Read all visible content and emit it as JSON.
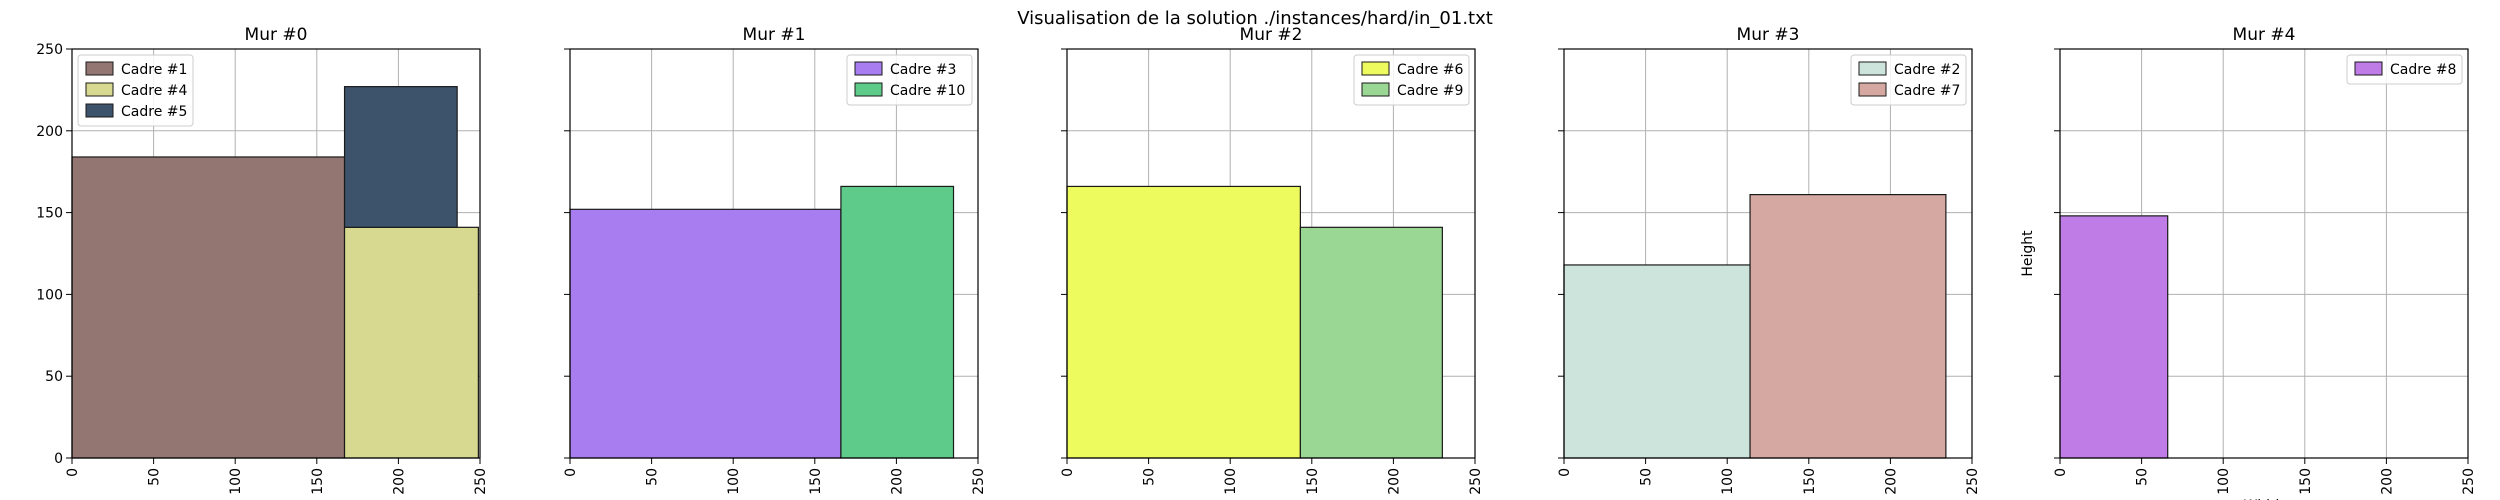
{
  "figure": {
    "title": "Visualisation de la solution ./instances/hard/in_01.txt"
  },
  "chart_data": [
    {
      "type": "bar",
      "title": "Mur #0",
      "xlabel": "",
      "ylabel": "",
      "xlim": [
        0,
        250
      ],
      "ylim": [
        0,
        250
      ],
      "xticks": [
        "0",
        "50",
        "100",
        "150",
        "200",
        "250"
      ],
      "yticks": [
        "0",
        "50",
        "100",
        "150",
        "200",
        "250"
      ],
      "show_yticklabels": true,
      "grid": true,
      "legend_position": "upper-left",
      "rects": [
        {
          "name": "Cadre #1",
          "x": 0,
          "y": 0,
          "w": 167,
          "h": 184,
          "color": "#937571"
        },
        {
          "name": "Cadre #4",
          "x": 167,
          "y": 0,
          "w": 82,
          "h": 141,
          "color": "#d8d990"
        },
        {
          "name": "Cadre #5",
          "x": 167,
          "y": 141,
          "w": 69,
          "h": 86,
          "color": "#3c536b"
        }
      ]
    },
    {
      "type": "bar",
      "title": "Mur #1",
      "xlabel": "",
      "ylabel": "",
      "xlim": [
        0,
        250
      ],
      "ylim": [
        0,
        250
      ],
      "xticks": [
        "0",
        "50",
        "100",
        "150",
        "200",
        "250"
      ],
      "yticks": [
        "0",
        "50",
        "100",
        "150",
        "200",
        "250"
      ],
      "show_yticklabels": false,
      "grid": true,
      "legend_position": "upper-right",
      "rects": [
        {
          "name": "Cadre #3",
          "x": 0,
          "y": 0,
          "w": 166,
          "h": 152,
          "color": "#a87df0"
        },
        {
          "name": "Cadre #10",
          "x": 166,
          "y": 0,
          "w": 69,
          "h": 166,
          "color": "#5ecb8a"
        }
      ]
    },
    {
      "type": "bar",
      "title": "Mur #2",
      "xlabel": "",
      "ylabel": "",
      "xlim": [
        0,
        250
      ],
      "ylim": [
        0,
        250
      ],
      "xticks": [
        "0",
        "50",
        "100",
        "150",
        "200",
        "250"
      ],
      "yticks": [
        "0",
        "50",
        "100",
        "150",
        "200",
        "250"
      ],
      "show_yticklabels": false,
      "grid": true,
      "legend_position": "upper-right",
      "rects": [
        {
          "name": "Cadre #6",
          "x": 0,
          "y": 0,
          "w": 143,
          "h": 166,
          "color": "#eefb5e"
        },
        {
          "name": "Cadre #9",
          "x": 143,
          "y": 0,
          "w": 87,
          "h": 141,
          "color": "#9ad694"
        }
      ]
    },
    {
      "type": "bar",
      "title": "Mur #3",
      "xlabel": "",
      "ylabel": "",
      "xlim": [
        0,
        250
      ],
      "ylim": [
        0,
        250
      ],
      "xticks": [
        "0",
        "50",
        "100",
        "150",
        "200",
        "250"
      ],
      "yticks": [
        "0",
        "50",
        "100",
        "150",
        "200",
        "250"
      ],
      "show_yticklabels": false,
      "grid": true,
      "legend_position": "upper-right",
      "rects": [
        {
          "name": "Cadre #2",
          "x": 0,
          "y": 0,
          "w": 114,
          "h": 118,
          "color": "#cde4dc"
        },
        {
          "name": "Cadre #7",
          "x": 114,
          "y": 0,
          "w": 120,
          "h": 161,
          "color": "#d5a9a1"
        }
      ]
    },
    {
      "type": "bar",
      "title": "Mur #4",
      "xlabel": "Width",
      "ylabel": "Height",
      "xlim": [
        0,
        250
      ],
      "ylim": [
        0,
        250
      ],
      "xticks": [
        "0",
        "50",
        "100",
        "150",
        "200",
        "250"
      ],
      "yticks": [
        "0",
        "50",
        "100",
        "150",
        "200",
        "250"
      ],
      "show_yticklabels": false,
      "grid": true,
      "legend_position": "upper-right",
      "rects": [
        {
          "name": "Cadre #8",
          "x": 0,
          "y": 0,
          "w": 66,
          "h": 148,
          "color": "#c07ce6"
        }
      ]
    }
  ]
}
